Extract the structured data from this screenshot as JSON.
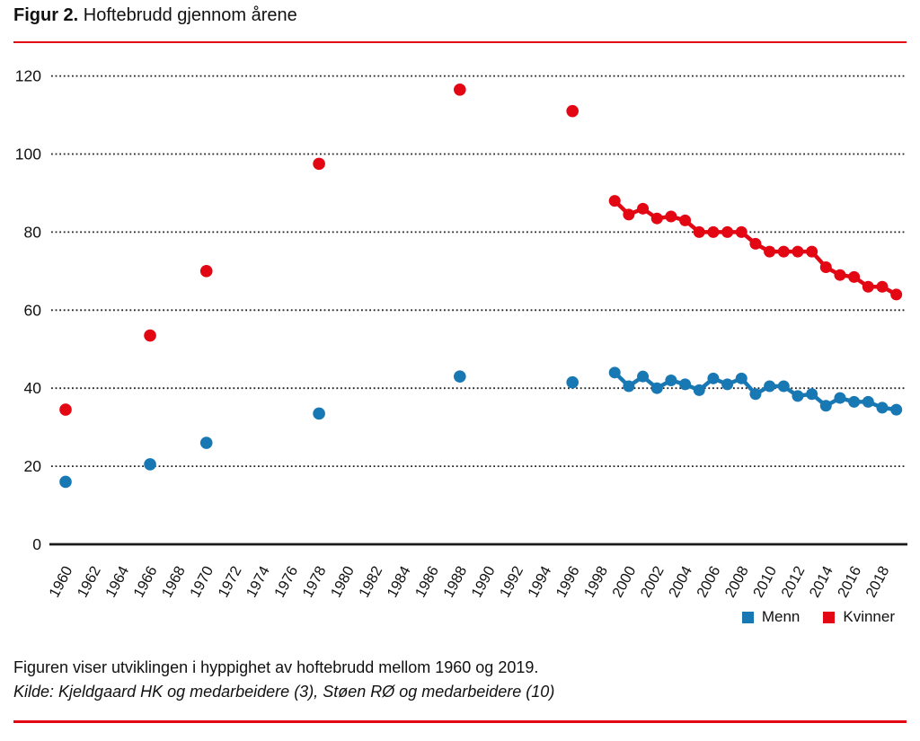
{
  "header": {
    "title_prefix": "Figur 2.",
    "title_rest": " Hoftebrudd gjennom årene"
  },
  "caption": {
    "line1": "Figuren viser utviklingen i hyppighet av hoftebrudd mellom 1960 og 2019.",
    "line2": "Kilde: Kjeldgaard HK og medarbeidere (3), Støen RØ og medarbeidere (10)"
  },
  "colors": {
    "menn": "#1878b4",
    "kvinner": "#e30613",
    "accent_red": "#e30613",
    "axis": "#1a1a1a"
  },
  "legend": {
    "items": [
      {
        "label": "Menn",
        "color_key": "menn"
      },
      {
        "label": "Kvinner",
        "color_key": "kvinner"
      }
    ]
  },
  "chart_data": {
    "type": "scatter",
    "title": "Hoftebrudd gjennom årene",
    "xlabel": "",
    "ylabel": "",
    "xlim": [
      1959,
      2020
    ],
    "ylim": [
      0,
      120
    ],
    "y_ticks": [
      0,
      20,
      40,
      60,
      80,
      100,
      120
    ],
    "x_ticks": [
      1960,
      1962,
      1964,
      1966,
      1968,
      1970,
      1972,
      1974,
      1976,
      1978,
      1980,
      1982,
      1984,
      1986,
      1988,
      1990,
      1992,
      1994,
      1996,
      1998,
      2000,
      2002,
      2004,
      2006,
      2008,
      2010,
      2012,
      2014,
      2016,
      2018
    ],
    "grid": "horizontal-dotted",
    "legend_position": "bottom-right",
    "series": [
      {
        "name": "Menn",
        "color": "#1878b4",
        "marker": "circle",
        "isolated_points": {
          "x": [
            1960,
            1966,
            1970,
            1978,
            1988,
            1996
          ],
          "y": [
            16,
            20.5,
            26,
            33.5,
            43,
            41.5
          ]
        },
        "connected_points": {
          "x": [
            1999,
            2000,
            2001,
            2002,
            2003,
            2004,
            2005,
            2006,
            2007,
            2008,
            2009,
            2010,
            2011,
            2012,
            2013,
            2014,
            2015,
            2016,
            2017,
            2018,
            2019
          ],
          "y": [
            44,
            40.5,
            43,
            40,
            42,
            41,
            39.5,
            42.5,
            41,
            42.5,
            38.5,
            40.5,
            40.5,
            38,
            38.5,
            35.5,
            37.5,
            36.5,
            36.5,
            35,
            34.5
          ]
        }
      },
      {
        "name": "Kvinner",
        "color": "#e30613",
        "marker": "circle",
        "isolated_points": {
          "x": [
            1960,
            1966,
            1970,
            1978,
            1988,
            1996
          ],
          "y": [
            34.5,
            53.5,
            70,
            97.5,
            116.5,
            111
          ]
        },
        "connected_points": {
          "x": [
            1999,
            2000,
            2001,
            2002,
            2003,
            2004,
            2005,
            2006,
            2007,
            2008,
            2009,
            2010,
            2011,
            2012,
            2013,
            2014,
            2015,
            2016,
            2017,
            2018,
            2019
          ],
          "y": [
            88,
            84.5,
            86,
            83.5,
            84,
            83,
            80,
            80,
            80,
            80,
            77,
            75,
            75,
            75,
            75,
            71,
            69,
            68.5,
            66,
            66,
            64
          ]
        }
      }
    ]
  }
}
